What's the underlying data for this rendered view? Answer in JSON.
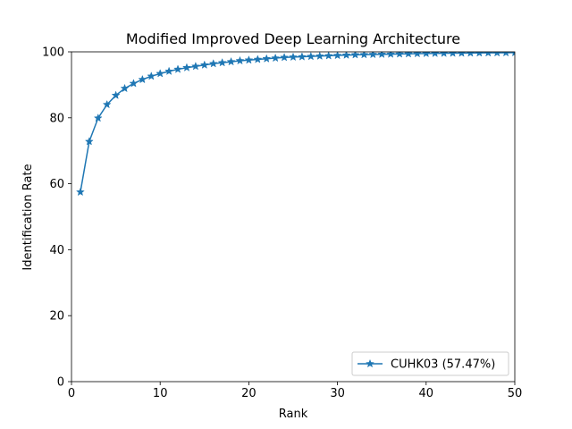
{
  "chart_data": {
    "type": "line",
    "title": "Modified Improved Deep Learning Architecture",
    "xlabel": "Rank",
    "ylabel": "Identification Rate",
    "xlim": [
      0,
      50
    ],
    "ylim": [
      0,
      100
    ],
    "xticks": [
      0,
      10,
      20,
      30,
      40,
      50
    ],
    "yticks": [
      0,
      20,
      40,
      60,
      80,
      100
    ],
    "grid": false,
    "legend_position": "lower-right",
    "series": [
      {
        "name": "CUHK03 (57.47%)",
        "color": "#1f77b4",
        "marker": "star",
        "x": [
          1,
          2,
          3,
          4,
          5,
          6,
          7,
          8,
          9,
          10,
          11,
          12,
          13,
          14,
          15,
          16,
          17,
          18,
          19,
          20,
          21,
          22,
          23,
          24,
          25,
          26,
          27,
          28,
          29,
          30,
          31,
          32,
          33,
          34,
          35,
          36,
          37,
          38,
          39,
          40,
          41,
          42,
          43,
          44,
          45,
          46,
          47,
          48,
          49,
          50
        ],
        "y": [
          57.47,
          72.8,
          79.9,
          84.0,
          86.8,
          88.9,
          90.4,
          91.6,
          92.6,
          93.4,
          94.1,
          94.7,
          95.2,
          95.6,
          96.0,
          96.4,
          96.7,
          97.0,
          97.3,
          97.5,
          97.7,
          97.9,
          98.1,
          98.3,
          98.4,
          98.5,
          98.6,
          98.7,
          98.8,
          98.9,
          99.0,
          99.1,
          99.15,
          99.2,
          99.25,
          99.3,
          99.35,
          99.4,
          99.45,
          99.5,
          99.52,
          99.55,
          99.58,
          99.6,
          99.62,
          99.65,
          99.68,
          99.7,
          99.72,
          99.75
        ]
      }
    ]
  }
}
